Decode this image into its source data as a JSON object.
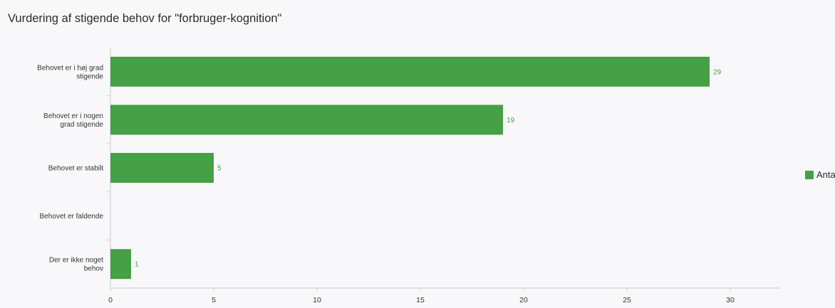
{
  "chart_data": {
    "type": "bar",
    "orientation": "horizontal",
    "title": "Vurdering af stigende behov for \"forbruger-kognition\"",
    "xlabel": "",
    "ylabel": "",
    "categories": [
      [
        "Behovet er i høj grad",
        "stigende"
      ],
      [
        "Behovet er i nogen",
        "grad stigende"
      ],
      [
        "Behovet er stabilt"
      ],
      [
        "Behovet er faldende"
      ],
      [
        "Der er ikke noget",
        "behov"
      ]
    ],
    "series": [
      {
        "name": "Antal",
        "values": [
          29,
          19,
          5,
          0,
          1
        ],
        "color": "#45a046"
      }
    ],
    "xticks": [
      0,
      5,
      10,
      15,
      20,
      25,
      30
    ],
    "xlim": [
      0,
      32.5
    ],
    "data_labels": [
      "29",
      "19",
      "5",
      "",
      "1"
    ],
    "grid": false,
    "legend": "right"
  }
}
